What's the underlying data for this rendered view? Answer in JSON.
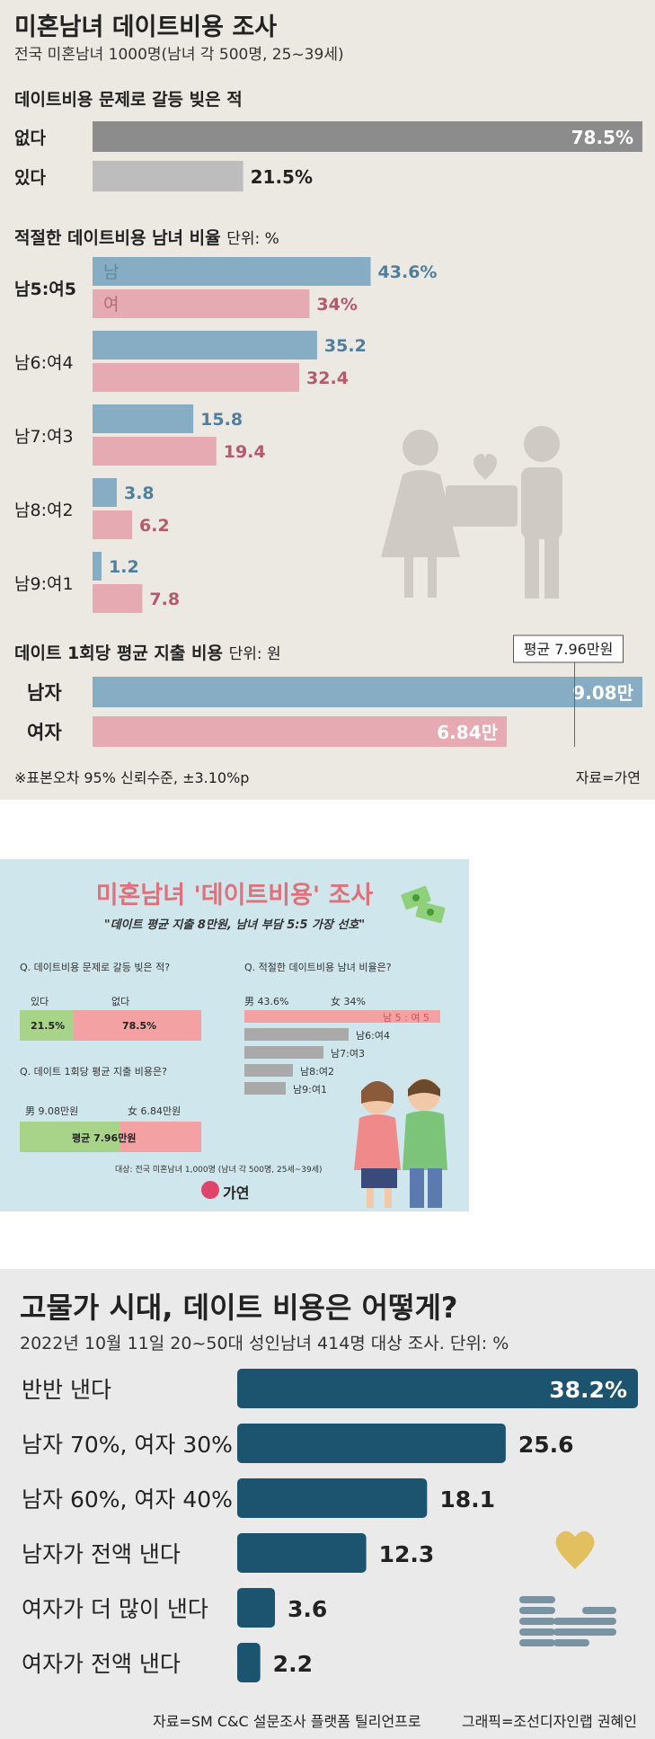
{
  "panel1": {
    "title": "미혼남녀 데이트비용 조사",
    "subtitle": "전국 미혼남녀 1000명(남녀 각 500명, 25~39세)",
    "conflict": {
      "title": "데이트비용 문제로 갈등 빚은 적",
      "colors": {
        "none": "#8c8c8c",
        "yes": "#bdbdbd"
      }
    },
    "ratio": {
      "title": "적절한 데이트비용 남녀 비율",
      "unit": "단위: %",
      "legend_m": "남",
      "legend_f": "여",
      "colors": {
        "male": "#87adc4",
        "female": "#e6aab2",
        "male_text": "#4f7f9c",
        "female_text": "#b55a6a"
      }
    },
    "spend": {
      "title": "데이트 1회당 평균 지출 비용",
      "unit": "단위: 원",
      "avg_label": "평균 7.96만원",
      "avg_value": 7.96
    },
    "footnote": "※표본오차 95% 신뢰수준, ±3.10%p",
    "source": "자료=가연"
  },
  "panel2": {
    "title": "미혼남녀 '데이트비용' 조사",
    "subtitle": "\"데이트 평균 지출 8만원, 남녀 부담 5:5 가장 선호\"",
    "q1": "Q. 데이트비용 문제로 갈등 빚은 적?",
    "q1_yes": "있다",
    "q1_no": "없다",
    "q1_yes_val": "21.5%",
    "q1_no_val": "78.5%",
    "q2": "Q. 적절한 데이트비용 남녀 비율은?",
    "q2_m": "男 43.6%",
    "q2_f": "女 34%",
    "q2_rows": [
      "남 5 : 여 5",
      "남6:여4",
      "남7:여3",
      "남8:여2",
      "남9:여1"
    ],
    "q3": "Q. 데이트 1회당 평균 지출 비용은?",
    "q3_m": "男 9.08만원",
    "q3_f": "女 6.84만원",
    "q3_avg": "평균 7.96만원",
    "target": "대상: 전국 미혼남녀 1,000명 (남녀 각 500명, 25세~39세)",
    "logo": "가연",
    "colors": {
      "green": "#a8d48a",
      "pink": "#f4a1a3",
      "gray": "#a9a9a9",
      "title": "#e0707a"
    }
  },
  "panel3": {
    "title": "고물가 시대, 데이트 비용은 어떻게?",
    "subtitle": "2022년 10월 11일 20~50대 성인남녀 414명 대상 조사. 단위: %",
    "source": "자료=SM C&C 설문조사 플랫폼 틸리언프로",
    "graphic": "그래픽=조선디자인랩 권혜인",
    "bar_color": "#1c5470"
  },
  "chart_data": [
    {
      "type": "bar",
      "title": "데이트비용 문제로 갈등 빚은 적",
      "categories": [
        "없다",
        "있다"
      ],
      "values": [
        78.5,
        21.5
      ],
      "value_labels": [
        "78.5%",
        "21.5%"
      ]
    },
    {
      "type": "bar",
      "title": "적절한 데이트비용 남녀 비율",
      "categories": [
        "남5:여5",
        "남6:여4",
        "남7:여3",
        "남8:여2",
        "남9:여1"
      ],
      "series": [
        {
          "name": "남",
          "values": [
            43.6,
            35.2,
            15.8,
            3.8,
            1.2
          ],
          "labels": [
            "43.6%",
            "35.2",
            "15.8",
            "3.8",
            "1.2"
          ]
        },
        {
          "name": "여",
          "values": [
            34,
            32.4,
            19.4,
            6.2,
            7.8
          ],
          "labels": [
            "34%",
            "32.4",
            "19.4",
            "6.2",
            "7.8"
          ]
        }
      ]
    },
    {
      "type": "bar",
      "title": "데이트 1회당 평균 지출 비용",
      "categories": [
        "남자",
        "여자"
      ],
      "values": [
        9.08,
        6.84
      ],
      "value_labels": [
        "9.08만",
        "6.84만"
      ]
    },
    {
      "type": "bar",
      "title": "고물가 시대, 데이트 비용은 어떻게?",
      "categories": [
        "반반 낸다",
        "남자 70%, 여자 30%",
        "남자 60%, 여자 40%",
        "남자가 전액 낸다",
        "여자가 더 많이 낸다",
        "여자가 전액 낸다"
      ],
      "values": [
        38.2,
        25.6,
        18.1,
        12.3,
        3.6,
        2.2
      ],
      "value_labels": [
        "38.2%",
        "25.6",
        "18.1",
        "12.3",
        "3.6",
        "2.2"
      ]
    }
  ]
}
